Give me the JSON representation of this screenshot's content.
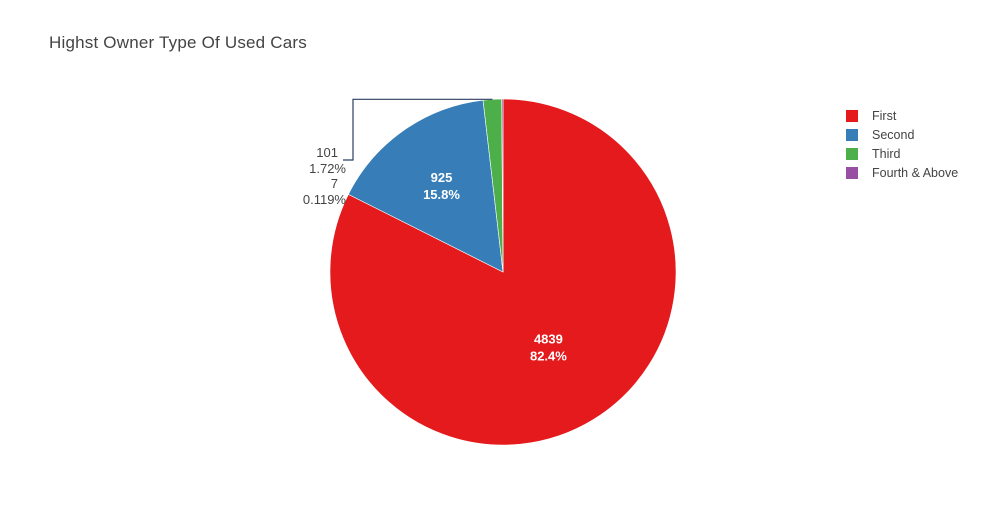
{
  "chart_data": {
    "type": "pie",
    "title": "Highst Owner Type Of Used Cars",
    "slices": [
      {
        "label": "First",
        "value": 4839,
        "percent_label": "82.4%",
        "color": "#e41a1c"
      },
      {
        "label": "Second",
        "value": 925,
        "percent_label": "15.8%",
        "color": "#377eb8"
      },
      {
        "label": "Third",
        "value": 101,
        "percent_label": "1.72%",
        "color": "#4daf4a"
      },
      {
        "label": "Fourth & Above",
        "value": 7,
        "percent_label": "0.119%",
        "color": "#984ea3"
      }
    ],
    "legend_position": "top-right"
  }
}
